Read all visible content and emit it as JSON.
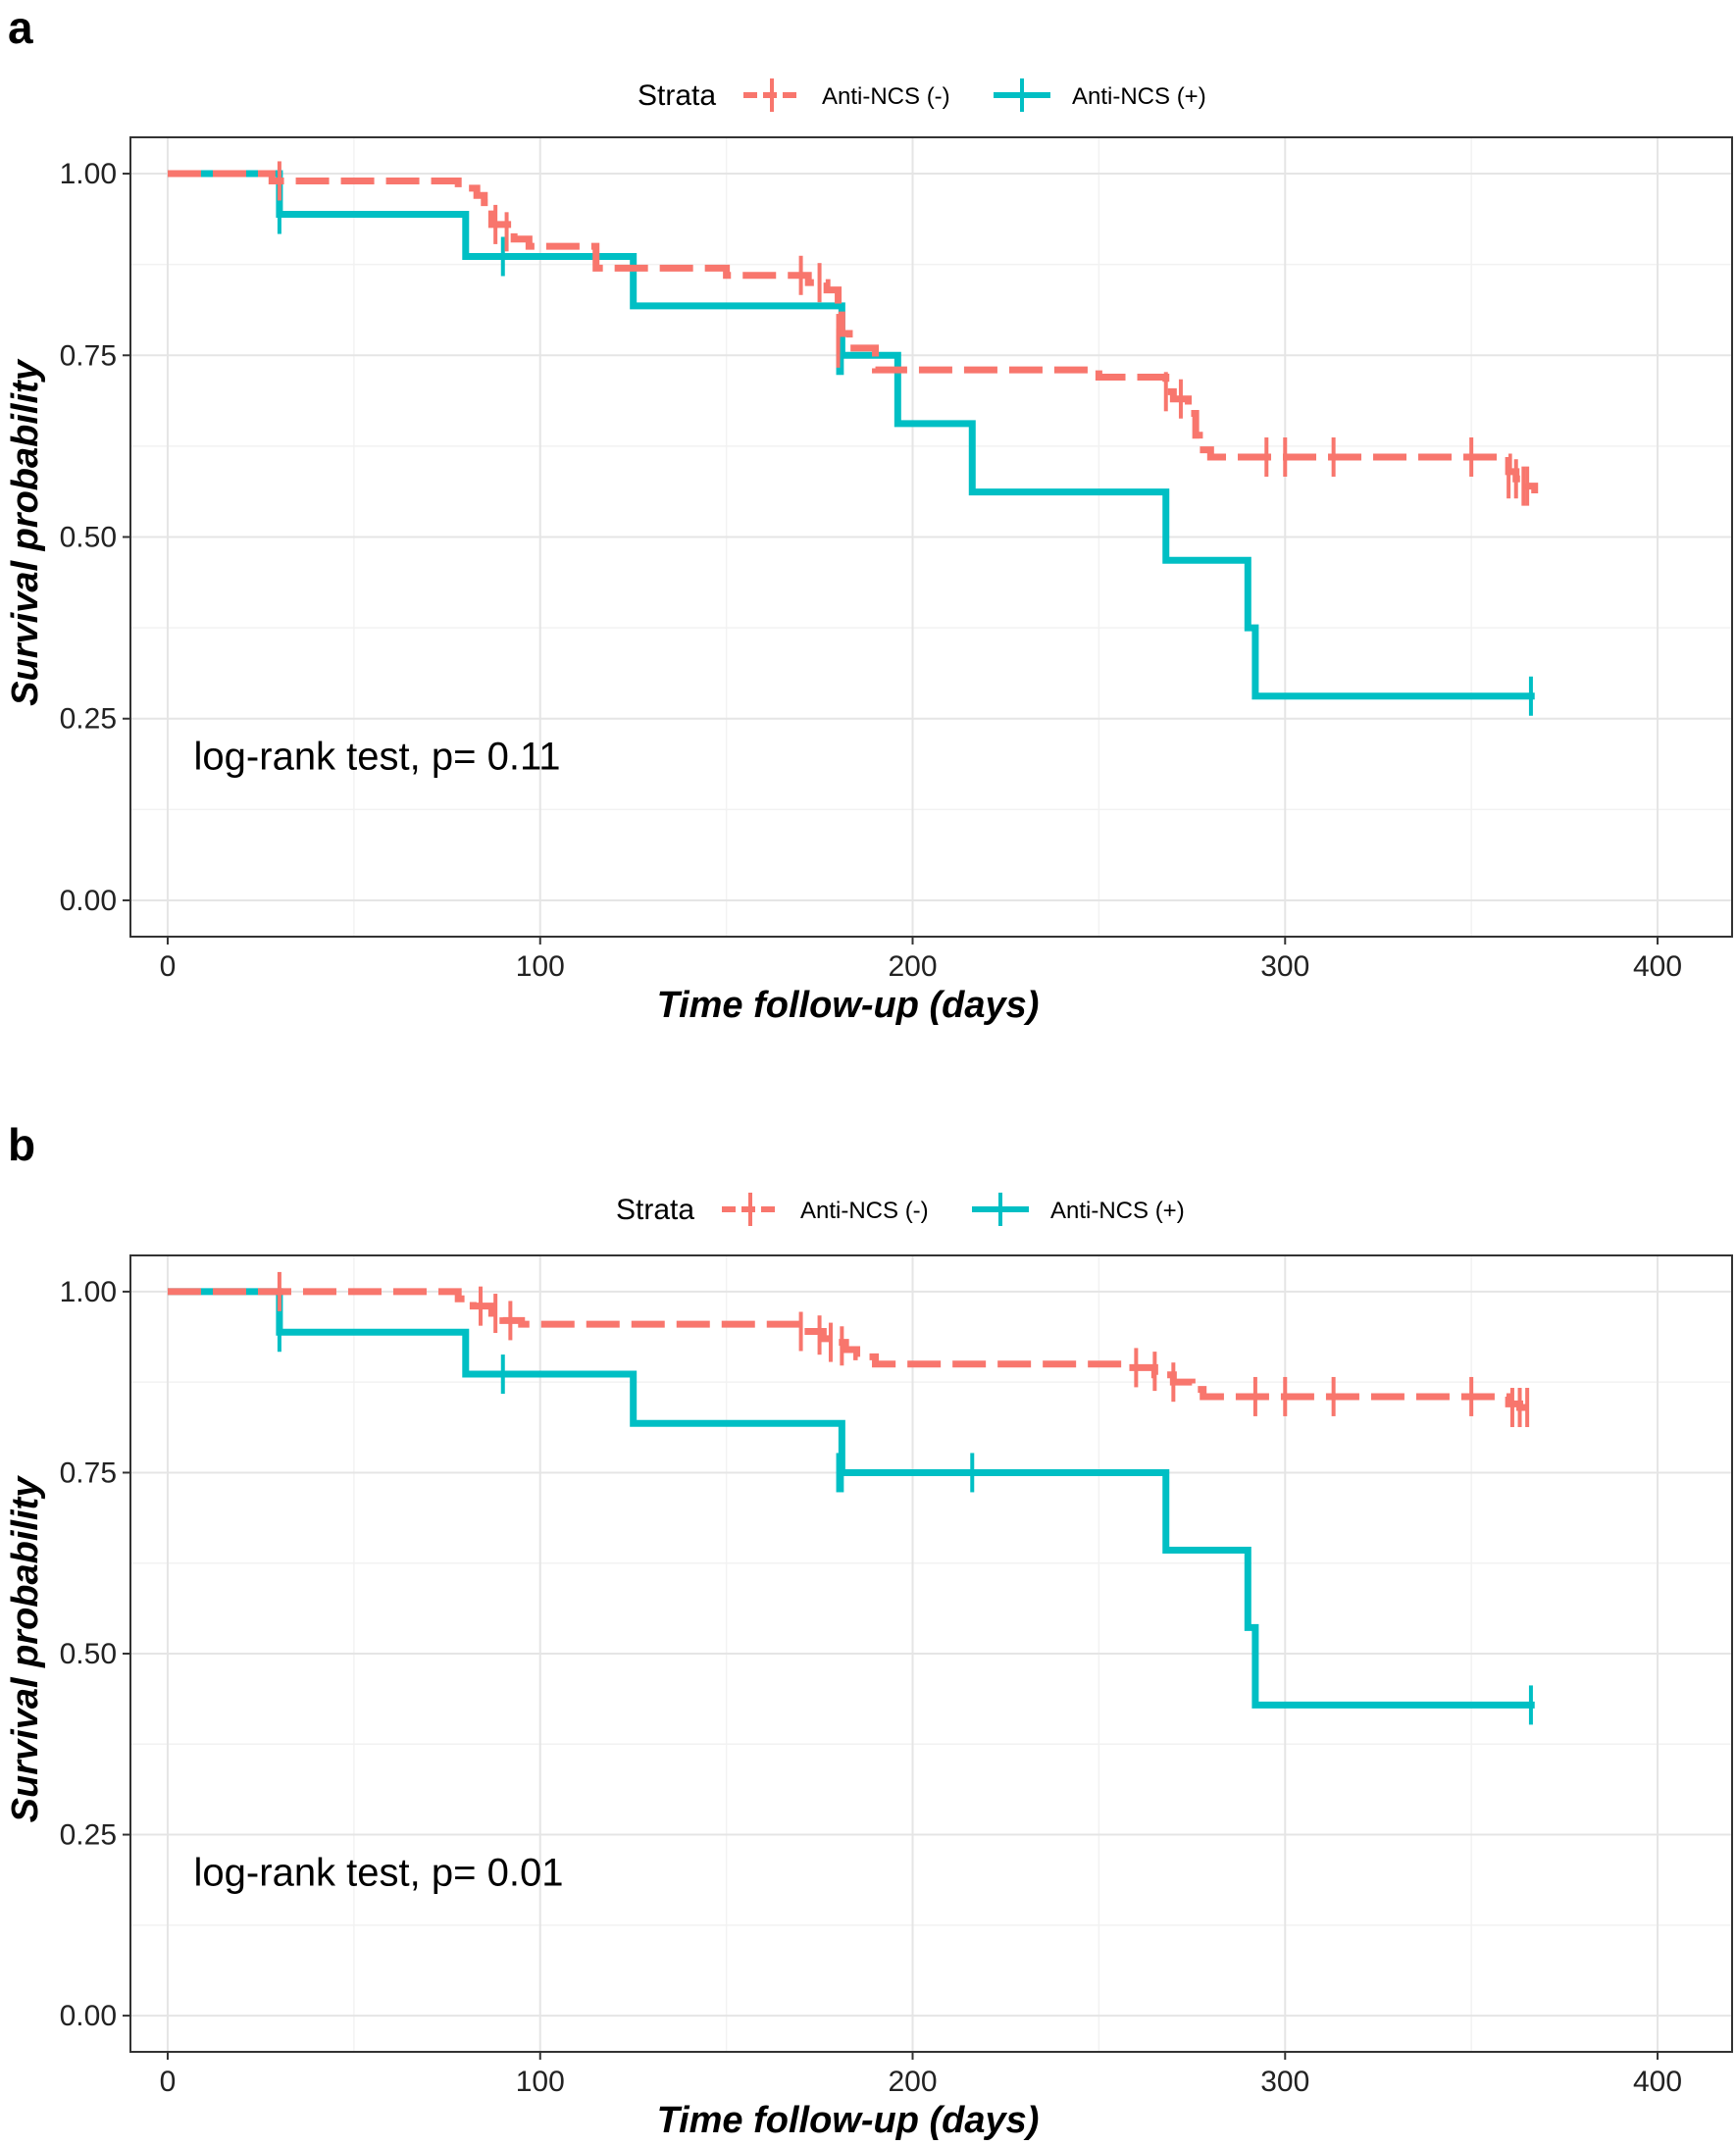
{
  "colors": {
    "neg": "#F8766D",
    "pos": "#00BFC4",
    "grid_major": "#E5E5E5",
    "grid_minor": "#F2F2F2",
    "panel_border": "#333333"
  },
  "chart_data": [
    {
      "panel": "a",
      "type": "line",
      "subtype": "kaplan-meier",
      "legend_title": "Strata",
      "xlabel": "Time follow-up (days)",
      "ylabel": "Survival probability",
      "xlim": [
        -10,
        420
      ],
      "ylim": [
        -0.05,
        1.05
      ],
      "xticks": [
        0,
        100,
        200,
        300,
        400
      ],
      "yticks": [
        0,
        0.25,
        0.5,
        0.75,
        1.0
      ],
      "ytick_labels": [
        "0.00",
        "0.25",
        "0.50",
        "0.75",
        "1.00"
      ],
      "annotation": "log-rank test, p= 0.11",
      "series": [
        {
          "name": "Anti-NCS (-)",
          "key": "neg",
          "dashed": true,
          "steps": [
            [
              0,
              1.0
            ],
            [
              28,
              0.99
            ],
            [
              78,
              0.98
            ],
            [
              83,
              0.97
            ],
            [
              85,
              0.96
            ],
            [
              87,
              0.93
            ],
            [
              93,
              0.91
            ],
            [
              97,
              0.9
            ],
            [
              115,
              0.87
            ],
            [
              150,
              0.86
            ],
            [
              172,
              0.85
            ],
            [
              177,
              0.84
            ],
            [
              180,
              0.82
            ],
            [
              181,
              0.78
            ],
            [
              183,
              0.76
            ],
            [
              190,
              0.73
            ],
            [
              250,
              0.72
            ],
            [
              268,
              0.7
            ],
            [
              270,
              0.69
            ],
            [
              274,
              0.67
            ],
            [
              276,
              0.64
            ],
            [
              277,
              0.62
            ],
            [
              280,
              0.61
            ],
            [
              360,
              0.59
            ],
            [
              362,
              0.58
            ],
            [
              365,
              0.57
            ],
            [
              367,
              0.56
            ]
          ],
          "end": 367,
          "censored": [
            [
              30,
              0.99
            ],
            [
              88,
              0.93
            ],
            [
              91,
              0.92
            ],
            [
              170,
              0.86
            ],
            [
              175,
              0.85
            ],
            [
              180,
              0.78
            ],
            [
              180,
              0.76
            ],
            [
              268,
              0.7
            ],
            [
              272,
              0.69
            ],
            [
              295,
              0.61
            ],
            [
              300,
              0.61
            ],
            [
              313,
              0.61
            ],
            [
              350,
              0.61
            ],
            [
              360,
              0.58
            ],
            [
              362,
              0.58
            ],
            [
              364,
              0.57
            ],
            [
              365,
              0.57
            ]
          ]
        },
        {
          "name": "Anti-NCS (+)",
          "key": "pos",
          "dashed": false,
          "steps": [
            [
              0,
              1.0
            ],
            [
              30,
              0.944
            ],
            [
              80,
              0.886
            ],
            [
              125,
              0.818
            ],
            [
              181,
              0.75
            ],
            [
              196,
              0.656
            ],
            [
              216,
              0.562
            ],
            [
              268,
              0.468
            ],
            [
              290,
              0.375
            ],
            [
              292,
              0.281
            ]
          ],
          "end": 367,
          "censored": [
            [
              30,
              0.944
            ],
            [
              90,
              0.886
            ],
            [
              180,
              0.75
            ],
            [
              181,
              0.75
            ],
            [
              366,
              0.281
            ]
          ]
        }
      ]
    },
    {
      "panel": "b",
      "type": "line",
      "subtype": "kaplan-meier",
      "legend_title": "Strata",
      "xlabel": "Time follow-up (days)",
      "ylabel": "Survival probability",
      "xlim": [
        -10,
        420
      ],
      "ylim": [
        -0.05,
        1.05
      ],
      "xticks": [
        0,
        100,
        200,
        300,
        400
      ],
      "yticks": [
        0,
        0.25,
        0.5,
        0.75,
        1.0
      ],
      "ytick_labels": [
        "0.00",
        "0.25",
        "0.50",
        "0.75",
        "1.00"
      ],
      "annotation": "log-rank test, p= 0.01",
      "series": [
        {
          "name": "Anti-NCS (-)",
          "key": "neg",
          "dashed": true,
          "steps": [
            [
              0,
              1.0
            ],
            [
              78,
              0.99
            ],
            [
              82,
              0.98
            ],
            [
              87,
              0.97
            ],
            [
              90,
              0.96
            ],
            [
              95,
              0.955
            ],
            [
              170,
              0.945
            ],
            [
              176,
              0.935
            ],
            [
              180,
              0.93
            ],
            [
              182,
              0.92
            ],
            [
              185,
              0.91
            ],
            [
              190,
              0.9
            ],
            [
              258,
              0.895
            ],
            [
              265,
              0.885
            ],
            [
              270,
              0.875
            ],
            [
              275,
              0.865
            ],
            [
              278,
              0.855
            ],
            [
              360,
              0.845
            ],
            [
              363,
              0.84
            ]
          ],
          "end": 367,
          "censored": [
            [
              30,
              1.0
            ],
            [
              84,
              0.98
            ],
            [
              88,
              0.97
            ],
            [
              92,
              0.96
            ],
            [
              170,
              0.945
            ],
            [
              175,
              0.94
            ],
            [
              178,
              0.93
            ],
            [
              181,
              0.925
            ],
            [
              260,
              0.895
            ],
            [
              265,
              0.89
            ],
            [
              270,
              0.875
            ],
            [
              292,
              0.855
            ],
            [
              300,
              0.855
            ],
            [
              313,
              0.855
            ],
            [
              350,
              0.855
            ],
            [
              361,
              0.84
            ],
            [
              363,
              0.84
            ],
            [
              365,
              0.84
            ]
          ]
        },
        {
          "name": "Anti-NCS (+)",
          "key": "pos",
          "dashed": false,
          "steps": [
            [
              0,
              1.0
            ],
            [
              30,
              0.944
            ],
            [
              80,
              0.886
            ],
            [
              125,
              0.818
            ],
            [
              181,
              0.75
            ],
            [
              268,
              0.643
            ],
            [
              290,
              0.536
            ],
            [
              292,
              0.429
            ]
          ],
          "end": 367,
          "censored": [
            [
              30,
              0.944
            ],
            [
              90,
              0.886
            ],
            [
              180,
              0.75
            ],
            [
              181,
              0.75
            ],
            [
              216,
              0.75
            ],
            [
              366,
              0.429
            ]
          ]
        }
      ]
    }
  ]
}
